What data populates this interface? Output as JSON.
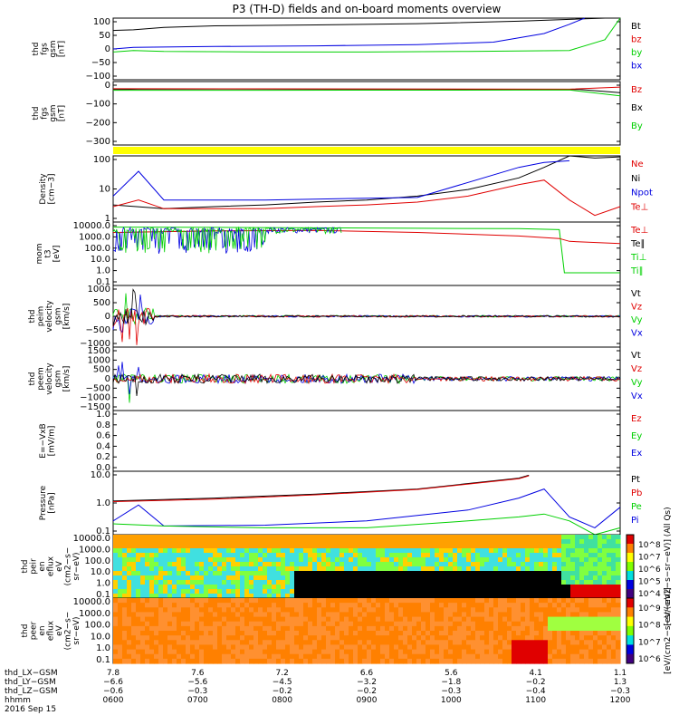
{
  "title": "P3 (TH-D) fields and on-board moments overview",
  "colors": {
    "black": "#000000",
    "red": "#e00000",
    "green": "#00d000",
    "blue": "#0000e0",
    "yellow": "#ffff00"
  },
  "chart_data": [
    {
      "type": "line",
      "panel": "fgs_gsm_nT",
      "ylabel": [
        "thd",
        "fgs",
        "gsm",
        "[nT]"
      ],
      "ylim": [
        -100,
        100
      ],
      "yticks": [
        "100",
        "50",
        "0",
        "−50",
        "−100"
      ],
      "legend": [
        {
          "name": "Bt",
          "color": "black"
        },
        {
          "name": "bz",
          "color": "red"
        },
        {
          "name": "by",
          "color": "green"
        },
        {
          "name": "bx",
          "color": "blue"
        }
      ],
      "series": [
        {
          "name": "Bt",
          "x": [
            0.0,
            0.04,
            0.1,
            0.2,
            0.4,
            0.6,
            0.8,
            0.97
          ],
          "y": [
            60,
            62,
            70,
            75,
            78,
            82,
            90,
            100
          ]
        },
        {
          "name": "bx",
          "x": [
            0.0,
            0.04,
            0.2,
            0.4,
            0.6,
            0.75,
            0.85,
            0.9,
            0.93
          ],
          "y": [
            0,
            5,
            8,
            10,
            14,
            22,
            50,
            80,
            100
          ]
        },
        {
          "name": "by",
          "x": [
            0.0,
            0.04,
            0.1,
            0.3,
            0.5,
            0.7,
            0.9,
            0.97,
            1.0
          ],
          "y": [
            -10,
            -5,
            -8,
            -10,
            -10,
            -8,
            -5,
            30,
            100
          ]
        }
      ]
    },
    {
      "type": "line",
      "panel": "fgs_gsm_large",
      "ylabel": [
        "thd",
        "fgs",
        "gsm",
        "[nT]"
      ],
      "ylim": [
        -350,
        50
      ],
      "yticks": [
        "0",
        "−100",
        "−200",
        "−300"
      ],
      "legend": [
        {
          "name": "Bz",
          "color": "red"
        },
        {
          "name": "Bx",
          "color": "black"
        },
        {
          "name": "By",
          "color": "green"
        }
      ],
      "series": [
        {
          "name": "Bx",
          "x": [
            0.0,
            0.05,
            0.2,
            0.4,
            0.6,
            0.8,
            0.92,
            1.0
          ],
          "y": [
            0,
            2,
            3,
            2,
            2,
            1,
            0,
            -20
          ]
        },
        {
          "name": "Bz",
          "x": [
            0.0,
            0.3,
            0.6,
            0.9,
            1.0
          ],
          "y": [
            5,
            4,
            3,
            2,
            15
          ]
        },
        {
          "name": "By",
          "x": [
            0.0,
            0.3,
            0.6,
            0.9,
            1.0
          ],
          "y": [
            -5,
            -5,
            -4,
            -3,
            -40
          ]
        }
      ]
    },
    {
      "type": "line",
      "panel": "density",
      "ylabel": [
        "Density",
        "[cm−3]"
      ],
      "ylog": true,
      "ylim": [
        0.1,
        100
      ],
      "yticks": [
        "100",
        "10",
        "1"
      ],
      "legend": [
        {
          "name": "Ne",
          "color": "red"
        },
        {
          "name": "Ni",
          "color": "black"
        },
        {
          "name": "Npot",
          "color": "blue"
        },
        {
          "name": "Te⊥",
          "color": "red"
        }
      ],
      "series": [
        {
          "name": "Ni",
          "x": [
            0.0,
            0.1,
            0.2,
            0.3,
            0.4,
            0.5,
            0.6,
            0.7,
            0.8,
            0.85,
            0.9,
            0.95,
            1.0
          ],
          "y": [
            0.6,
            0.4,
            0.5,
            0.6,
            0.8,
            1.0,
            1.5,
            3.0,
            10,
            30,
            100,
            80,
            90
          ]
        },
        {
          "name": "Ne",
          "x": [
            0.0,
            0.05,
            0.1,
            0.2,
            0.3,
            0.4,
            0.5,
            0.6,
            0.7,
            0.8,
            0.85,
            0.9,
            0.95,
            1.0
          ],
          "y": [
            0.5,
            1.0,
            0.4,
            0.4,
            0.4,
            0.5,
            0.6,
            0.8,
            1.5,
            5,
            8,
            1.0,
            0.2,
            0.5
          ]
        },
        {
          "name": "Npot",
          "x": [
            0.0,
            0.05,
            0.1,
            0.3,
            0.5,
            0.6,
            0.8,
            0.85,
            0.9
          ],
          "y": [
            1.5,
            20,
            1.0,
            1.0,
            1.2,
            1.3,
            30,
            50,
            60
          ]
        }
      ]
    },
    {
      "type": "line",
      "panel": "temperature",
      "ylabel": [
        "mom",
        "t3",
        "[eV]"
      ],
      "ylog": true,
      "ylim": [
        0.1,
        10000
      ],
      "yticks": [
        "10000.0",
        "1000.0",
        "100.0",
        "10.0",
        "1.0",
        "0.1"
      ],
      "legend": [
        {
          "name": "Te⊥",
          "color": "red"
        },
        {
          "name": "Te∥",
          "color": "black"
        },
        {
          "name": "Ti⊥",
          "color": "green"
        },
        {
          "name": "Ti∥",
          "color": "green"
        }
      ],
      "series": [
        {
          "name": "Ti∥",
          "x": [
            0.0,
            0.2,
            0.4,
            0.6,
            0.8,
            0.88,
            0.89,
            1.0
          ],
          "y": [
            4000,
            3800,
            3500,
            3200,
            3000,
            2500,
            1,
            1
          ]
        },
        {
          "name": "Te⊥",
          "x": [
            0.0,
            0.2,
            0.4,
            0.6,
            0.8,
            0.88,
            0.9,
            1.0
          ],
          "y": [
            1500,
            2000,
            2200,
            1500,
            800,
            500,
            300,
            200
          ]
        }
      ]
    },
    {
      "type": "line",
      "panel": "peim_velocity",
      "ylabel": [
        "thd",
        "peim",
        "velocity",
        "gsm",
        "[km/s]"
      ],
      "ylim": [
        -1000,
        1000
      ],
      "yticks": [
        "1000",
        "500",
        "0",
        "−500",
        "−1000"
      ],
      "legend": [
        {
          "name": "Vt",
          "color": "black"
        },
        {
          "name": "Vz",
          "color": "red"
        },
        {
          "name": "Vy",
          "color": "green"
        },
        {
          "name": "Vx",
          "color": "blue"
        }
      ]
    },
    {
      "type": "line",
      "panel": "peem_velocity",
      "ylabel": [
        "thd",
        "peem",
        "velocity",
        "gsm",
        "[km/s]"
      ],
      "ylim": [
        -1500,
        1500
      ],
      "yticks": [
        "1500",
        "1000",
        "500",
        "0",
        "−500",
        "−1000",
        "−1500"
      ],
      "legend": [
        {
          "name": "Vt",
          "color": "black"
        },
        {
          "name": "Vz",
          "color": "red"
        },
        {
          "name": "Vy",
          "color": "green"
        },
        {
          "name": "Vx",
          "color": "blue"
        }
      ]
    },
    {
      "type": "line",
      "panel": "efield",
      "ylabel": [
        "E=−VxB",
        "[mV/m]"
      ],
      "ylim": [
        0,
        1.0
      ],
      "yticks": [
        "1.0",
        "0.8",
        "0.6",
        "0.4",
        "0.2",
        "0.0"
      ],
      "legend": [
        {
          "name": "Ez",
          "color": "red"
        },
        {
          "name": "Ey",
          "color": "green"
        },
        {
          "name": "Ex",
          "color": "blue"
        }
      ]
    },
    {
      "type": "line",
      "panel": "pressure",
      "ylabel": [
        "Pressure",
        "[nPa]"
      ],
      "ylog": true,
      "ylim": [
        0.05,
        30
      ],
      "yticks": [
        "10.0",
        "1.0",
        "0.1"
      ],
      "legend": [
        {
          "name": "Pt",
          "color": "black"
        },
        {
          "name": "Pb",
          "color": "red"
        },
        {
          "name": "Pe",
          "color": "green"
        },
        {
          "name": "Pi",
          "color": "blue"
        }
      ],
      "series": [
        {
          "name": "Pt",
          "x": [
            0.0,
            0.2,
            0.4,
            0.6,
            0.8,
            0.82
          ],
          "y": [
            1.5,
            2.0,
            3.0,
            5.0,
            15,
            20
          ]
        },
        {
          "name": "Pb",
          "x": [
            0.0,
            0.2,
            0.4,
            0.6,
            0.8,
            0.82
          ],
          "y": [
            1.4,
            1.8,
            2.8,
            4.8,
            14,
            19
          ]
        },
        {
          "name": "Pi",
          "x": [
            0.0,
            0.05,
            0.1,
            0.3,
            0.5,
            0.7,
            0.8,
            0.85,
            0.9,
            0.95,
            1.0
          ],
          "y": [
            0.2,
            1.0,
            0.12,
            0.13,
            0.2,
            0.6,
            2.0,
            5.0,
            0.3,
            0.1,
            0.8
          ]
        },
        {
          "name": "Pe",
          "x": [
            0.0,
            0.1,
            0.3,
            0.5,
            0.7,
            0.8,
            0.85,
            0.9,
            0.95,
            1.0
          ],
          "y": [
            0.15,
            0.12,
            0.1,
            0.1,
            0.2,
            0.3,
            0.4,
            0.2,
            0.05,
            0.1
          ]
        }
      ]
    },
    {
      "type": "heatmap",
      "panel": "peir_en_eflux",
      "ylabel": [
        "thd",
        "peir",
        "en",
        "eflux",
        "eV",
        "(cm2−s−",
        "sr−eV)"
      ],
      "yticks": [
        "10000.0",
        "1000.0",
        "100.0",
        "10.0",
        "1.0",
        "0.1"
      ],
      "colorbar_label": "[eV/(cm2−s−sr−eV)] (All Qs)",
      "colorbar_ticks": [
        "10^8",
        "10^7",
        "10^6",
        "10^5",
        "10^4"
      ]
    },
    {
      "type": "heatmap",
      "panel": "peer_en_eflux",
      "ylabel": [
        "thd",
        "peer",
        "en",
        "eflux",
        "eV",
        "(cm2−s−",
        "sr−eV)"
      ],
      "yticks": [
        "10000.0",
        "1000.0",
        "100.0",
        "10.0",
        "1.0",
        "0.1"
      ],
      "colorbar_label": "[eV/(cm2−s−sr−eV)]",
      "colorbar_ticks": [
        "10^9",
        "10^8",
        "10^7",
        "10^6"
      ]
    }
  ],
  "xaxis": {
    "rows": [
      {
        "label": "thd_LX−GSM",
        "values": [
          "7.8",
          "7.6",
          "7.2",
          "6.6",
          "5.6",
          "4.1",
          "1.1"
        ]
      },
      {
        "label": "thd_LY−GSM",
        "values": [
          "−6.6",
          "−5.6",
          "−4.5",
          "−3.2",
          "−1.8",
          "−0.2",
          "1.3"
        ]
      },
      {
        "label": "thd_LZ−GSM",
        "values": [
          "−0.6",
          "−0.3",
          "−0.2",
          "−0.2",
          "−0.3",
          "−0.4",
          "−0.3"
        ]
      },
      {
        "label": "hhmm",
        "values": [
          "0600",
          "0700",
          "0800",
          "0900",
          "1000",
          "1100",
          "1200"
        ]
      }
    ],
    "date": "2016 Sep 15"
  }
}
